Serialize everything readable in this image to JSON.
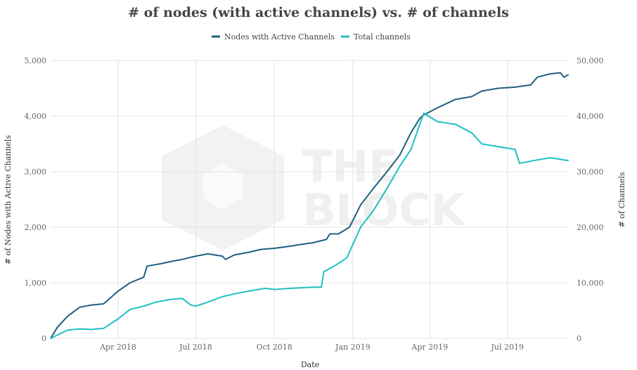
{
  "chart_data": {
    "type": "line",
    "title": "# of nodes (with active channels) vs. # of channels",
    "xlabel": "Date",
    "ylabel_left": "# of Nodes with Active Channels",
    "ylabel_right": "# of Channels",
    "x_ticks": [
      "Apr 2018",
      "Jul 2018",
      "Oct 2018",
      "Jan 2019",
      "Apr 2019",
      "Jul 2019"
    ],
    "x_tick_dates": [
      "2018-04-01",
      "2018-07-01",
      "2018-10-01",
      "2019-01-01",
      "2019-04-01",
      "2019-07-01"
    ],
    "xlim": [
      "2018-01-12",
      "2019-09-10"
    ],
    "ylim_left": [
      0,
      5000
    ],
    "ylim_right": [
      0,
      50000
    ],
    "yticks_left": [
      "0",
      "1,000",
      "2,000",
      "3,000",
      "4,000",
      "5,000"
    ],
    "yticks_right": [
      "0",
      "10,000",
      "20,000",
      "30,000",
      "40,000",
      "50,000"
    ],
    "grid": true,
    "legend_position": "top-center",
    "series": [
      {
        "name": "Nodes with Active Channels",
        "axis": "left",
        "color": "#1f5f7f",
        "points": [
          [
            "2018-01-12",
            0
          ],
          [
            "2018-01-20",
            200
          ],
          [
            "2018-02-01",
            400
          ],
          [
            "2018-02-15",
            560
          ],
          [
            "2018-03-01",
            600
          ],
          [
            "2018-03-15",
            620
          ],
          [
            "2018-04-01",
            850
          ],
          [
            "2018-04-15",
            1000
          ],
          [
            "2018-05-01",
            1100
          ],
          [
            "2018-05-05",
            1300
          ],
          [
            "2018-05-20",
            1340
          ],
          [
            "2018-06-01",
            1380
          ],
          [
            "2018-06-15",
            1420
          ],
          [
            "2018-07-01",
            1480
          ],
          [
            "2018-07-15",
            1520
          ],
          [
            "2018-08-01",
            1480
          ],
          [
            "2018-08-05",
            1420
          ],
          [
            "2018-08-15",
            1500
          ],
          [
            "2018-09-01",
            1550
          ],
          [
            "2018-09-15",
            1600
          ],
          [
            "2018-10-01",
            1620
          ],
          [
            "2018-10-20",
            1660
          ],
          [
            "2018-11-01",
            1690
          ],
          [
            "2018-11-15",
            1720
          ],
          [
            "2018-12-01",
            1780
          ],
          [
            "2018-12-05",
            1880
          ],
          [
            "2018-12-15",
            1880
          ],
          [
            "2018-12-28",
            2000
          ],
          [
            "2019-01-10",
            2400
          ],
          [
            "2019-01-25",
            2700
          ],
          [
            "2019-02-10",
            3000
          ],
          [
            "2019-02-25",
            3300
          ],
          [
            "2019-03-10",
            3700
          ],
          [
            "2019-03-20",
            3950
          ],
          [
            "2019-03-25",
            4020
          ],
          [
            "2019-04-10",
            4150
          ],
          [
            "2019-05-01",
            4300
          ],
          [
            "2019-05-20",
            4350
          ],
          [
            "2019-06-01",
            4450
          ],
          [
            "2019-06-20",
            4500
          ],
          [
            "2019-07-10",
            4520
          ],
          [
            "2019-07-28",
            4560
          ],
          [
            "2019-08-05",
            4700
          ],
          [
            "2019-08-20",
            4760
          ],
          [
            "2019-09-01",
            4780
          ],
          [
            "2019-09-05",
            4700
          ],
          [
            "2019-09-10",
            4740
          ]
        ]
      },
      {
        "name": "Total channels",
        "axis": "right",
        "color": "#1fbfc4",
        "points": [
          [
            "2018-01-12",
            0
          ],
          [
            "2018-02-01",
            1500
          ],
          [
            "2018-02-15",
            1700
          ],
          [
            "2018-03-01",
            1600
          ],
          [
            "2018-03-15",
            1800
          ],
          [
            "2018-04-01",
            3500
          ],
          [
            "2018-04-15",
            5200
          ],
          [
            "2018-05-01",
            5800
          ],
          [
            "2018-05-15",
            6500
          ],
          [
            "2018-06-01",
            7000
          ],
          [
            "2018-06-15",
            7200
          ],
          [
            "2018-06-25",
            6000
          ],
          [
            "2018-07-01",
            5800
          ],
          [
            "2018-07-15",
            6500
          ],
          [
            "2018-08-01",
            7500
          ],
          [
            "2018-08-15",
            8000
          ],
          [
            "2018-09-01",
            8500
          ],
          [
            "2018-09-20",
            9000
          ],
          [
            "2018-10-01",
            8800
          ],
          [
            "2018-10-20",
            9000
          ],
          [
            "2018-11-01",
            9100
          ],
          [
            "2018-11-15",
            9200
          ],
          [
            "2018-11-25",
            9200
          ],
          [
            "2018-11-28",
            12000
          ],
          [
            "2018-12-10",
            13000
          ],
          [
            "2018-12-25",
            14500
          ],
          [
            "2019-01-10",
            20000
          ],
          [
            "2019-01-25",
            23000
          ],
          [
            "2019-02-10",
            27000
          ],
          [
            "2019-02-25",
            31000
          ],
          [
            "2019-03-10",
            34000
          ],
          [
            "2019-03-25",
            40500
          ],
          [
            "2019-04-10",
            39000
          ],
          [
            "2019-05-01",
            38500
          ],
          [
            "2019-05-20",
            37000
          ],
          [
            "2019-06-01",
            35000
          ],
          [
            "2019-06-20",
            34500
          ],
          [
            "2019-07-10",
            34000
          ],
          [
            "2019-07-15",
            31500
          ],
          [
            "2019-08-01",
            32000
          ],
          [
            "2019-08-20",
            32500
          ],
          [
            "2019-09-10",
            32000
          ]
        ]
      }
    ]
  },
  "watermark": {
    "line1": "THE",
    "line2": "BLOCK"
  }
}
